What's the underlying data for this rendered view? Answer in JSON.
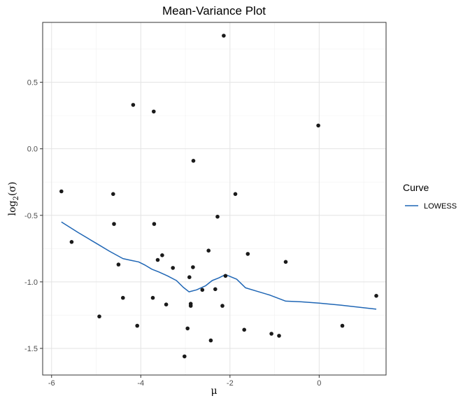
{
  "chart_data": {
    "type": "scatter",
    "title": "Mean-Variance Plot",
    "xlabel": "μ",
    "ylabel_base": "log",
    "ylabel_sub": "2",
    "ylabel_arg": "(σ)",
    "xlim": [
      -6.2,
      1.5
    ],
    "ylim": [
      -1.7,
      0.95
    ],
    "x_ticks": [
      -6,
      -4,
      -2,
      0
    ],
    "x_tick_labels": [
      "-6",
      "-4",
      "-2",
      "0"
    ],
    "y_ticks": [
      -1.5,
      -1.0,
      -0.5,
      0.0,
      0.5
    ],
    "y_tick_labels": [
      "-1.5",
      "-1.0",
      "-0.5",
      "0.0",
      "0.5"
    ],
    "grid": true,
    "legend": {
      "title": "Curve",
      "position": "right",
      "entries": [
        {
          "label": "LOWESS",
          "color": "#1f66b5"
        }
      ]
    },
    "colors": {
      "points": "#1a1a1a",
      "line": "#1f66b5",
      "grid_major": "#e3e3e3",
      "grid_minor": "#f1f1f1",
      "panel_border": "#333333"
    },
    "points": [
      {
        "x": -5.78,
        "y": -0.32
      },
      {
        "x": -5.55,
        "y": -0.7
      },
      {
        "x": -4.93,
        "y": -1.26
      },
      {
        "x": -4.62,
        "y": -0.34
      },
      {
        "x": -4.6,
        "y": -0.565
      },
      {
        "x": -4.5,
        "y": -0.87
      },
      {
        "x": -4.4,
        "y": -1.12
      },
      {
        "x": -4.17,
        "y": 0.33
      },
      {
        "x": -4.08,
        "y": -1.33
      },
      {
        "x": -3.73,
        "y": -1.12
      },
      {
        "x": -3.71,
        "y": 0.28
      },
      {
        "x": -3.7,
        "y": -0.565
      },
      {
        "x": -3.62,
        "y": -0.835
      },
      {
        "x": -3.52,
        "y": -0.8
      },
      {
        "x": -3.43,
        "y": -1.17
      },
      {
        "x": -3.28,
        "y": -0.895
      },
      {
        "x": -3.02,
        "y": -1.56
      },
      {
        "x": -2.95,
        "y": -1.35
      },
      {
        "x": -2.91,
        "y": -0.965
      },
      {
        "x": -2.88,
        "y": -1.165
      },
      {
        "x": -2.88,
        "y": -1.18
      },
      {
        "x": -2.83,
        "y": -0.89
      },
      {
        "x": -2.82,
        "y": -0.09
      },
      {
        "x": -2.62,
        "y": -1.06
      },
      {
        "x": -2.48,
        "y": -0.765
      },
      {
        "x": -2.43,
        "y": -1.44
      },
      {
        "x": -2.33,
        "y": -1.055
      },
      {
        "x": -2.28,
        "y": -0.51
      },
      {
        "x": -2.17,
        "y": -1.18
      },
      {
        "x": -2.14,
        "y": 0.85
      },
      {
        "x": -2.1,
        "y": -0.955
      },
      {
        "x": -1.88,
        "y": -0.34
      },
      {
        "x": -1.68,
        "y": -1.36
      },
      {
        "x": -1.6,
        "y": -0.79
      },
      {
        "x": -1.07,
        "y": -1.39
      },
      {
        "x": -0.9,
        "y": -1.405
      },
      {
        "x": -0.75,
        "y": -0.85
      },
      {
        "x": -0.02,
        "y": 0.175
      },
      {
        "x": 0.52,
        "y": -1.33
      },
      {
        "x": 1.28,
        "y": -1.105
      }
    ],
    "series": [
      {
        "name": "LOWESS",
        "x": [
          -5.78,
          -5.4,
          -5.0,
          -4.7,
          -4.4,
          -4.2,
          -4.05,
          -3.9,
          -3.75,
          -3.6,
          -3.4,
          -3.2,
          -3.05,
          -2.92,
          -2.75,
          -2.55,
          -2.4,
          -2.25,
          -2.1,
          -1.85,
          -1.65,
          -1.4,
          -1.1,
          -0.75,
          -0.4,
          0.0,
          0.5,
          1.28
        ],
        "y": [
          -0.55,
          -0.63,
          -0.71,
          -0.77,
          -0.825,
          -0.84,
          -0.85,
          -0.875,
          -0.905,
          -0.925,
          -0.955,
          -0.99,
          -1.04,
          -1.075,
          -1.06,
          -1.03,
          -0.99,
          -0.97,
          -0.945,
          -0.98,
          -1.045,
          -1.07,
          -1.1,
          -1.145,
          -1.15,
          -1.16,
          -1.175,
          -1.205
        ]
      }
    ]
  }
}
